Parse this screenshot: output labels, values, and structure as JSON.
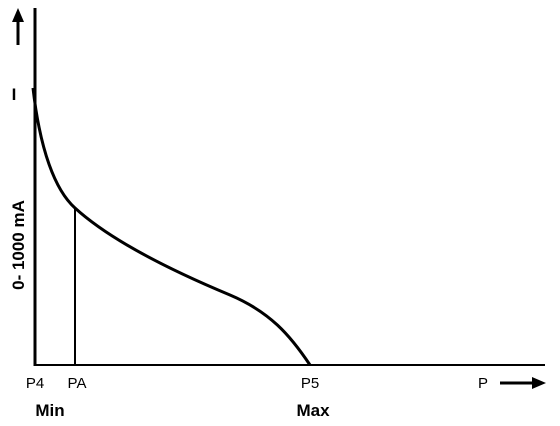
{
  "y_axis": {
    "symbol": "I",
    "label": "0- 1000 mA"
  },
  "x_axis": {
    "labels": [
      "P4",
      "PA",
      "P5",
      "P"
    ],
    "min_label": "Min",
    "max_label": "Max"
  }
}
